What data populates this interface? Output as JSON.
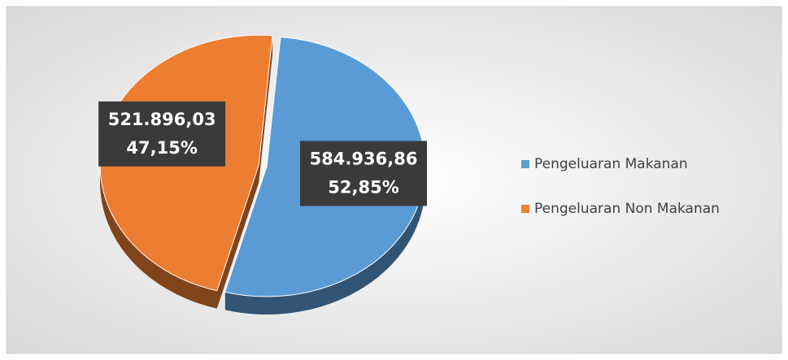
{
  "chart_data": {
    "type": "pie",
    "categories": [
      "Pengeluaran Makanan",
      "Pengeluaran Non Makanan"
    ],
    "values": [
      584936.86,
      521896.03
    ],
    "value_labels": [
      "584.936,86",
      "521.896,03"
    ],
    "percentages": [
      52.85,
      47.15
    ],
    "percentage_labels": [
      "52,85%",
      "47,15%"
    ],
    "colors": [
      "#5b9bd5",
      "#ed7d31"
    ],
    "legend": "right"
  }
}
